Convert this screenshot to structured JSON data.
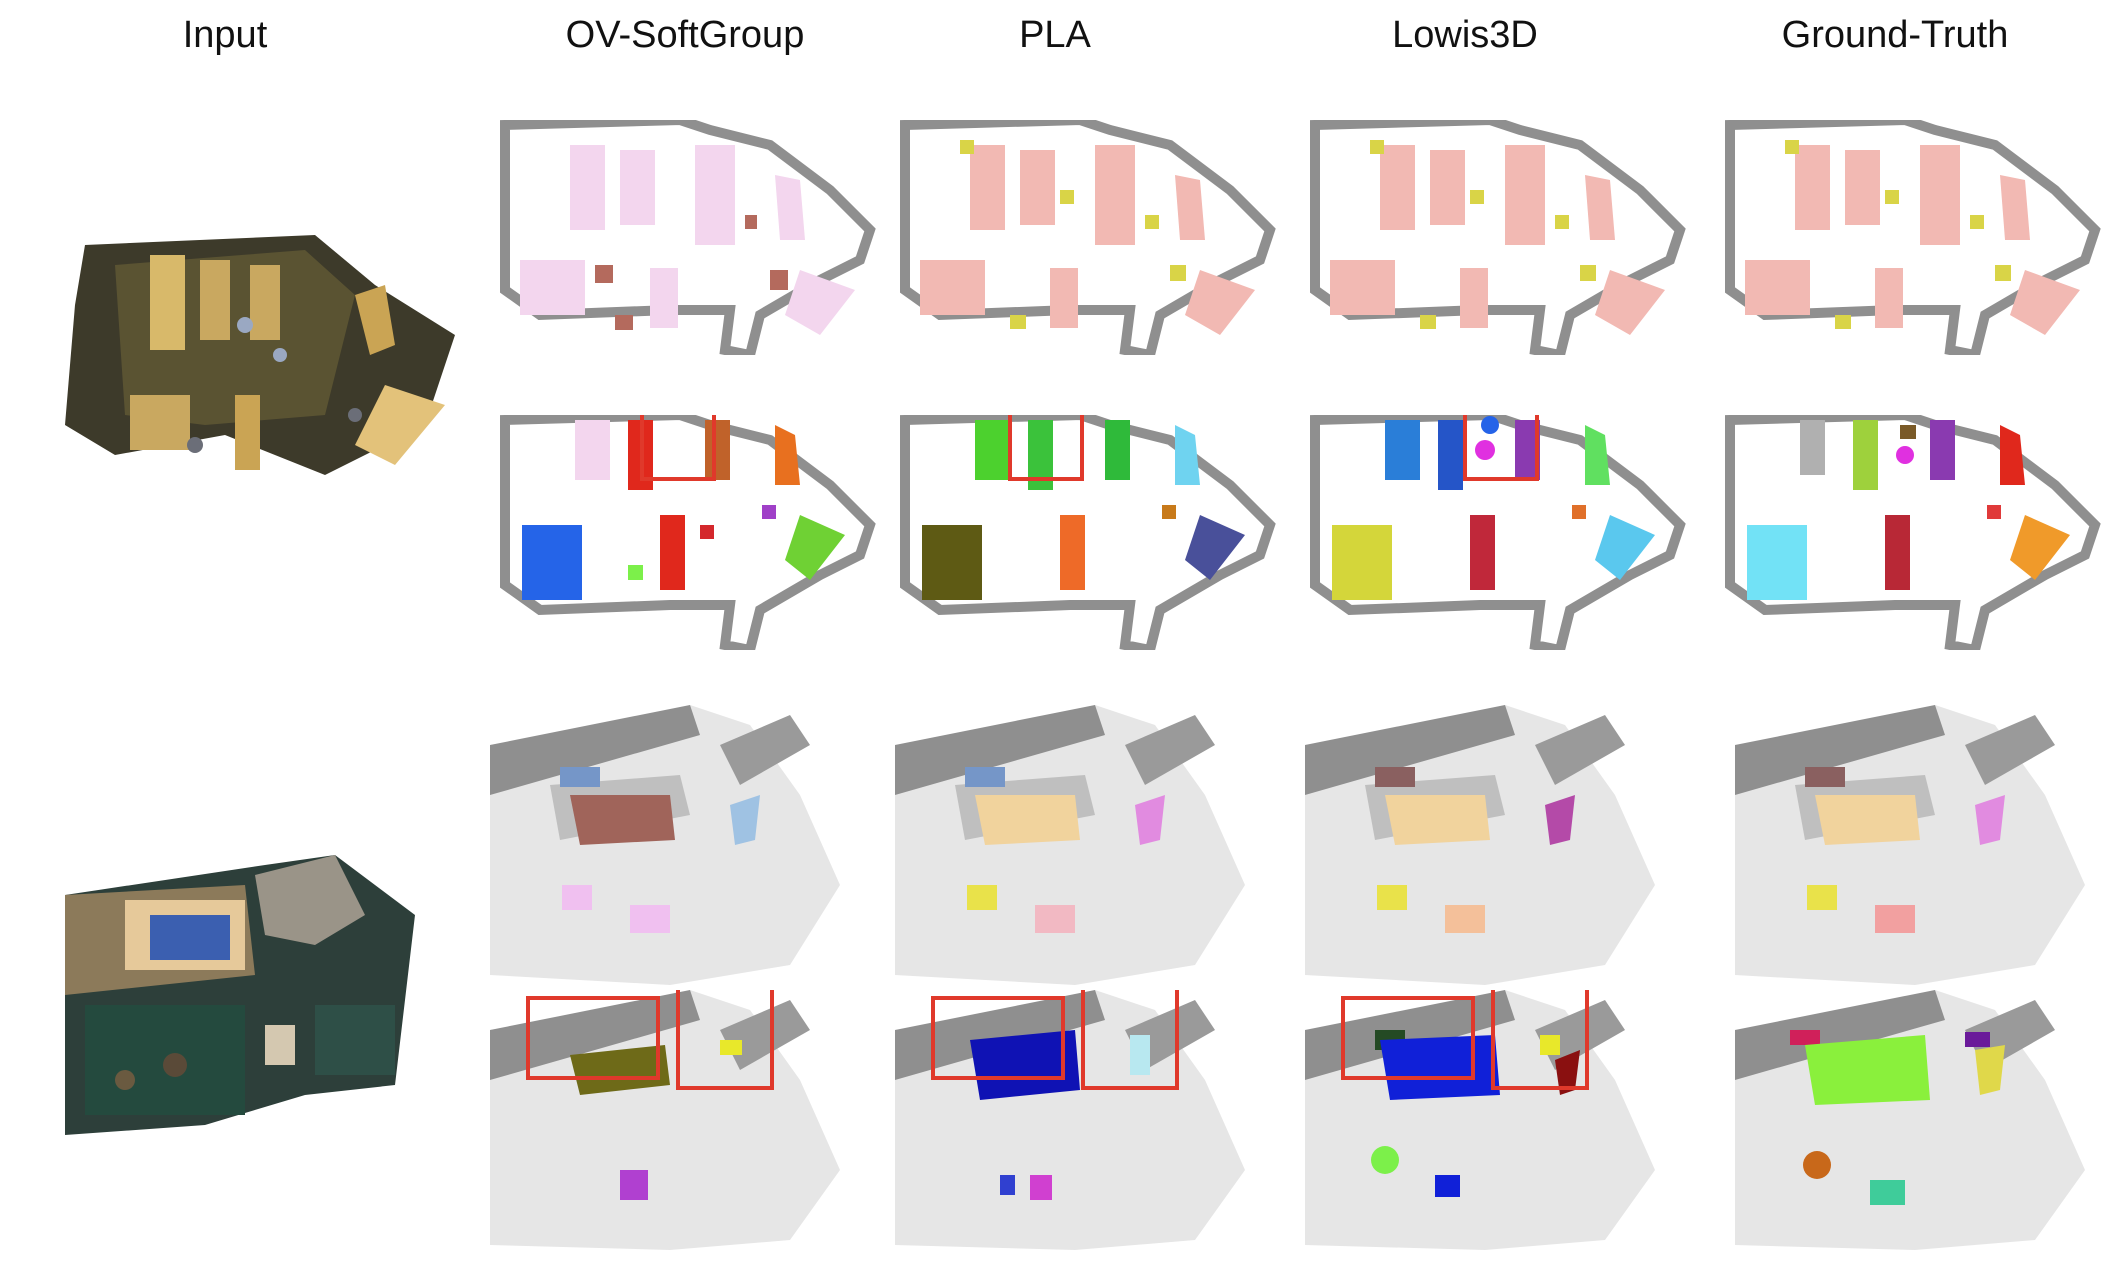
{
  "columns": {
    "input": "Input",
    "ov_softgroup": "OV-SoftGroup",
    "pla": "PLA",
    "lowis3d": "Lowis3D",
    "ground_truth": "Ground-Truth"
  },
  "colors": {
    "wall": "#8f8f8f",
    "highlight_box": "#e0392b",
    "scene1_semantic": {
      "ov_softgroup": {
        "table": "#f3d6ee",
        "chair": "#b46a5d"
      },
      "pla": {
        "table": "#f2b9b3",
        "chair": "#d9d447"
      },
      "lowis3d": {
        "table": "#f2b9b3",
        "chair": "#d9d447"
      },
      "ground_truth": {
        "table": "#f2b9b3",
        "chair": "#d9d447"
      }
    },
    "scene2_semantic": {
      "ov_softgroup": {
        "bed": "#a0645a",
        "object": "#9fc2e3"
      },
      "pla": {
        "bed": "#f1d39d",
        "object": "#e18be0"
      },
      "lowis3d": {
        "bed": "#f1d39d",
        "object": "#b44aa8"
      },
      "ground_truth": {
        "bed": "#f1d39d",
        "object": "#e18be0"
      }
    }
  }
}
